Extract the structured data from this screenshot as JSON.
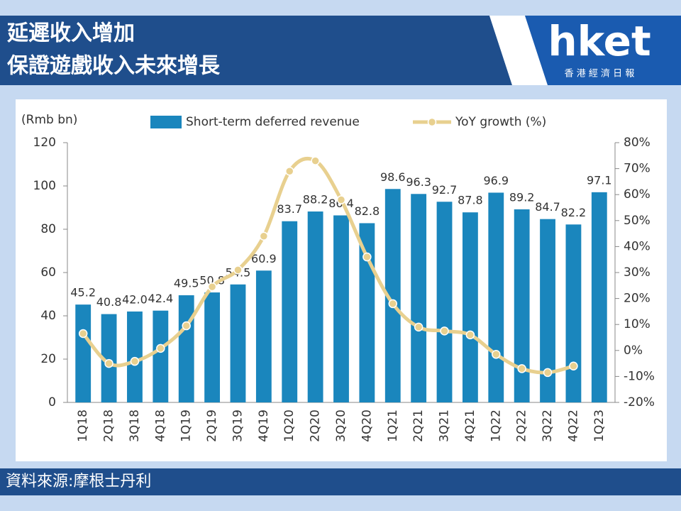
{
  "header": {
    "title_lines": [
      "延遲收入增加",
      "保證遊戲收入未來增長"
    ],
    "logo": "hket",
    "logo_subtitle": "香 港 經 濟 日 報"
  },
  "source": "資料來源:摩根士丹利",
  "chart_data": {
    "type": "bar",
    "y_label": "(Rmb bn)",
    "categories": [
      "1Q18",
      "2Q18",
      "3Q18",
      "4Q18",
      "1Q19",
      "2Q19",
      "3Q19",
      "4Q19",
      "1Q20",
      "2Q20",
      "3Q20",
      "4Q20",
      "1Q21",
      "2Q21",
      "3Q21",
      "4Q21",
      "1Q22",
      "2Q22",
      "3Q22",
      "4Q22",
      "1Q23"
    ],
    "series": [
      {
        "name": "Short-term deferred revenue",
        "type": "bar",
        "color": "#1a86bd",
        "values": [
          45.2,
          40.8,
          42.0,
          42.4,
          49.5,
          50.8,
          54.5,
          60.9,
          83.7,
          88.2,
          86.4,
          82.8,
          98.6,
          96.3,
          92.7,
          87.8,
          96.9,
          89.2,
          84.7,
          82.2,
          97.1
        ],
        "value_labels": [
          "45.2",
          "40.8",
          "42.0",
          "42.4",
          "49.5",
          "50.8",
          "54.5",
          "60.9",
          "83.7",
          "88.2",
          "86.4",
          "82.8",
          "98.6",
          "96.3",
          "92.7",
          "87.8",
          "96.9",
          "89.2",
          "84.7",
          "82.2",
          "97.1"
        ]
      },
      {
        "name": "YoY growth (%)",
        "type": "line",
        "axis": "y2",
        "color": "#e8d08f",
        "values": [
          6.5,
          -5,
          -4.2,
          0.8,
          9.5,
          24.5,
          31,
          44,
          69,
          73,
          58,
          36,
          18,
          9,
          7.5,
          6,
          -1.5,
          -7,
          -8.5,
          -6,
          null
        ]
      }
    ],
    "ylim": [
      0,
      120
    ],
    "yticks": [
      0,
      20,
      40,
      60,
      80,
      100,
      120
    ],
    "y2lim": [
      -20,
      80
    ],
    "y2ticks": [
      {
        "value": -20,
        "label": "-20%"
      },
      {
        "value": -10,
        "label": "-10%"
      },
      {
        "value": 0,
        "label": "0%"
      },
      {
        "value": 10,
        "label": "10%"
      },
      {
        "value": 20,
        "label": "20%"
      },
      {
        "value": 30,
        "label": "30%"
      },
      {
        "value": 40,
        "label": "40%"
      },
      {
        "value": 50,
        "label": "50%"
      },
      {
        "value": 60,
        "label": "60%"
      },
      {
        "value": 70,
        "label": "70%"
      },
      {
        "value": 80,
        "label": "80%"
      }
    ],
    "grid": false
  }
}
